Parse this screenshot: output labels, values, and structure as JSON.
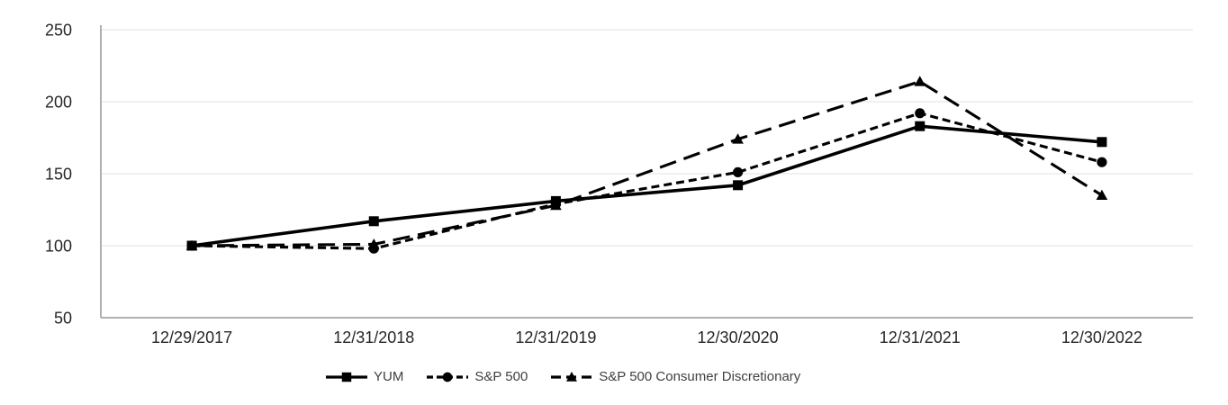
{
  "chart_data": {
    "type": "line",
    "title": "",
    "categories": [
      "12/29/2017",
      "12/31/2018",
      "12/31/2019",
      "12/30/2020",
      "12/31/2021",
      "12/30/2022"
    ],
    "series": [
      {
        "name": "YUM",
        "values": [
          100,
          117,
          131,
          142,
          183,
          172
        ],
        "line_style": "solid",
        "marker": "square",
        "color": "#000000"
      },
      {
        "name": "S&P 500",
        "values": [
          100,
          98,
          129,
          151,
          192,
          158
        ],
        "line_style": "dashed",
        "marker": "circle",
        "color": "#000000"
      },
      {
        "name": "S&P 500 Consumer Discretionary",
        "values": [
          100,
          101,
          128,
          174,
          214,
          135
        ],
        "line_style": "long-dash",
        "marker": "triangle",
        "color": "#000000"
      }
    ],
    "y_axis": {
      "min": 50,
      "max": 250,
      "tick_step": 50,
      "ticks": [
        50,
        100,
        150,
        200,
        250
      ]
    },
    "x_axis": {
      "ticks_are_dates": true
    },
    "grid": "horizontal",
    "legend_position": "bottom",
    "colors": {
      "background": "#ffffff",
      "grid": "#e6e6e6",
      "axis": "#a6a6a6",
      "tick_text": "#262626",
      "legend_text": "#404040",
      "series": "#000000"
    }
  }
}
